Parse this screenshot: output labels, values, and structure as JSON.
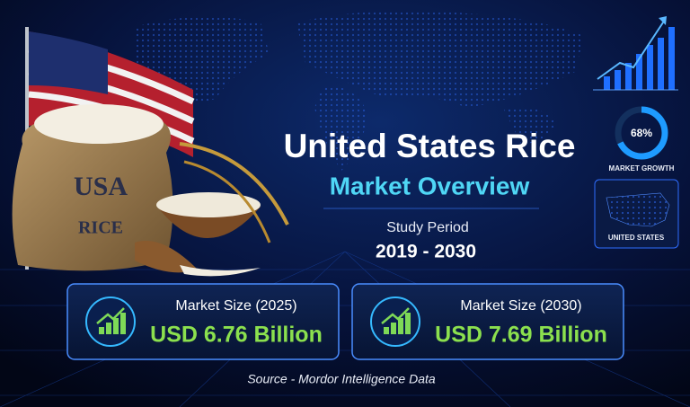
{
  "header": {
    "title": "United States Rice",
    "subtitle": "Market Overview",
    "period_label": "Study Period",
    "period": "2019 - 2030"
  },
  "cards": [
    {
      "label": "Market Size (2025)",
      "value": "USD 6.76 Billion"
    },
    {
      "label": "Market Size (2030)",
      "value": "USD 7.69 Billion"
    }
  ],
  "growth_gauge": {
    "value": 68,
    "label": "68%",
    "caption": "MARKET GROWTH"
  },
  "map_caption": "UNITED STATES",
  "bag": {
    "line1": "USA",
    "line2": "RICE"
  },
  "source": "Source - Mordor Intelligence Data"
}
